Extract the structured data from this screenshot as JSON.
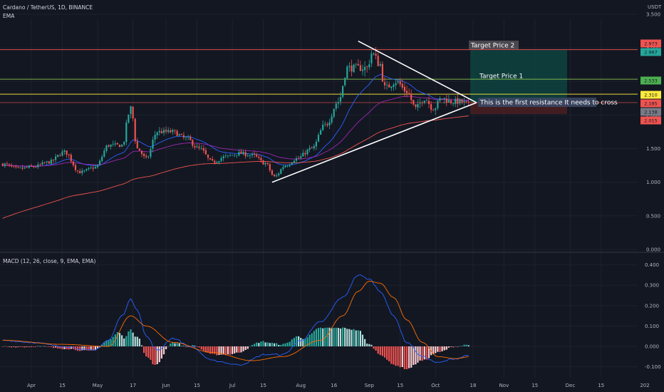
{
  "header": {
    "symbol": "Cardano / TetherUS, 1D, BINANCE",
    "ema_label": "EMA",
    "currency": "USDT",
    "macd_label": "MACD (12, 26, close, 9, EMA, EMA)"
  },
  "colors": {
    "background": "#131722",
    "up": "#26a69a",
    "down": "#ef5350",
    "ema_fast": "#2962ff",
    "ema_mid": "#9c27b0",
    "ema_slow": "#ef5350",
    "macd_line": "#2962ff",
    "signal_line": "#ff6d00",
    "target_zone": "#0d4a44",
    "stop_zone": "#4a1e22"
  },
  "annotations": {
    "target_price_2": "Target Price 2",
    "target_price_1": "Target Price 1",
    "resistance_note": "This is the first resistance It needs to cross"
  },
  "chart_data": [
    {
      "type": "candlestick",
      "title": "Cardano / TetherUS, 1D, BINANCE",
      "x_ticks": [
        "Apr",
        "15",
        "May",
        "17",
        "Jun",
        "15",
        "Jul",
        "15",
        "Aug",
        "16",
        "Sep",
        "15",
        "Oct",
        "18",
        "Nov",
        "15",
        "Dec",
        "15",
        "202"
      ],
      "y_ticks": [
        "3.500",
        "3.000",
        "2.500",
        "2.000",
        "1.500",
        "1.000",
        "0.500",
        "0.000"
      ],
      "ylim": [
        0,
        3.5
      ],
      "price_tags": [
        {
          "value": "2.973",
          "color": "#ef5350"
        },
        {
          "value": "2.967",
          "color": "#26a69a"
        },
        {
          "value": "2.533",
          "color": "#4caf50"
        },
        {
          "value": "2.310",
          "color": "#ffeb3b"
        },
        {
          "value": "2.185",
          "color": "#ef5350"
        },
        {
          "value": "2.138",
          "color": "#787b86"
        },
        {
          "value": "2.015",
          "color": "#ef5350"
        }
      ],
      "horizontal_lines": [
        2.973,
        2.533,
        2.31,
        2.185
      ],
      "trendlines": [
        {
          "name": "upper",
          "points": [
            [
              "Aug 27",
              3.1
            ],
            [
              "Oct 17",
              2.185
            ]
          ]
        },
        {
          "name": "lower",
          "points": [
            [
              "Jul 19",
              1.0
            ],
            [
              "Oct 17",
              2.185
            ]
          ]
        }
      ],
      "trade_zone": {
        "entry": 2.185,
        "target": 2.967,
        "stop": 2.015
      },
      "series_points": [
        [
          "Mar 19",
          1.27
        ],
        [
          "Mar 26",
          1.2
        ],
        [
          "Apr 2",
          1.23
        ],
        [
          "Apr 9",
          1.3
        ],
        [
          "Apr 16",
          1.45
        ],
        [
          "Apr 23",
          1.15
        ],
        [
          "Apr 30",
          1.22
        ],
        [
          "May 6",
          1.55
        ],
        [
          "May 12",
          1.55
        ],
        [
          "May 16",
          2.1
        ],
        [
          "May 19",
          1.5
        ],
        [
          "May 23",
          1.35
        ],
        [
          "May 28",
          1.75
        ],
        [
          "Jun 4",
          1.75
        ],
        [
          "Jun 10",
          1.65
        ],
        [
          "Jun 16",
          1.5
        ],
        [
          "Jun 22",
          1.3
        ],
        [
          "Jun 28",
          1.38
        ],
        [
          "Jul 4",
          1.43
        ],
        [
          "Jul 10",
          1.4
        ],
        [
          "Jul 16",
          1.28
        ],
        [
          "Jul 20",
          1.08
        ],
        [
          "Jul 25",
          1.25
        ],
        [
          "Jul 30",
          1.35
        ],
        [
          "Aug 6",
          1.5
        ],
        [
          "Aug 12",
          1.85
        ],
        [
          "Aug 18",
          2.2
        ],
        [
          "Aug 22",
          2.7
        ],
        [
          "Aug 26",
          2.7
        ],
        [
          "Aug 31",
          2.7
        ],
        [
          "Sep 2",
          2.92
        ],
        [
          "Sep 6",
          2.75
        ],
        [
          "Sep 8",
          2.4
        ],
        [
          "Sep 13",
          2.5
        ],
        [
          "Sep 18",
          2.35
        ],
        [
          "Sep 22",
          2.1
        ],
        [
          "Sep 26",
          2.25
        ],
        [
          "Sep 30",
          2.1
        ],
        [
          "Oct 4",
          2.25
        ],
        [
          "Oct 8",
          2.2
        ],
        [
          "Oct 12",
          2.2
        ],
        [
          "Oct 16",
          2.16
        ]
      ]
    },
    {
      "type": "line",
      "title": "MACD (12, 26, close, 9, EMA, EMA)",
      "y_ticks": [
        "0.400",
        "0.300",
        "0.200",
        "0.100",
        "0.000",
        "-0.100"
      ],
      "ylim": [
        -0.13,
        0.4
      ],
      "macd": [
        [
          "Mar 19",
          0.03
        ],
        [
          "Apr 1",
          0.02
        ],
        [
          "Apr 15",
          0.0
        ],
        [
          "Apr 29",
          -0.02
        ],
        [
          "May 6",
          0.03
        ],
        [
          "May 12",
          0.15
        ],
        [
          "May 16",
          0.23
        ],
        [
          "May 19",
          0.18
        ],
        [
          "May 23",
          0.05
        ],
        [
          "May 28",
          -0.02
        ],
        [
          "Jun 4",
          0.04
        ],
        [
          "Jun 12",
          0.0
        ],
        [
          "Jun 22",
          -0.07
        ],
        [
          "Jul 4",
          -0.09
        ],
        [
          "Jul 16",
          -0.04
        ],
        [
          "Jul 24",
          -0.04
        ],
        [
          "Aug 1",
          0.03
        ],
        [
          "Aug 10",
          0.12
        ],
        [
          "Aug 20",
          0.24
        ],
        [
          "Aug 27",
          0.35
        ],
        [
          "Sep 1",
          0.33
        ],
        [
          "Sep 6",
          0.27
        ],
        [
          "Sep 12",
          0.15
        ],
        [
          "Sep 18",
          0.02
        ],
        [
          "Sep 25",
          -0.05
        ],
        [
          "Oct 2",
          -0.08
        ],
        [
          "Oct 10",
          -0.06
        ],
        [
          "Oct 17",
          -0.04
        ]
      ],
      "signal": [
        [
          "Mar 19",
          0.03
        ],
        [
          "Apr 15",
          0.01
        ],
        [
          "May 6",
          0.0
        ],
        [
          "May 16",
          0.15
        ],
        [
          "May 23",
          0.1
        ],
        [
          "Jun 4",
          0.02
        ],
        [
          "Jun 22",
          -0.03
        ],
        [
          "Jul 10",
          -0.07
        ],
        [
          "Jul 24",
          -0.05
        ],
        [
          "Aug 10",
          0.03
        ],
        [
          "Aug 20",
          0.15
        ],
        [
          "Aug 27",
          0.27
        ],
        [
          "Sep 1",
          0.32
        ],
        [
          "Sep 6",
          0.31
        ],
        [
          "Sep 12",
          0.24
        ],
        [
          "Sep 18",
          0.13
        ],
        [
          "Sep 25",
          0.02
        ],
        [
          "Oct 2",
          -0.05
        ],
        [
          "Oct 10",
          -0.06
        ],
        [
          "Oct 17",
          -0.05
        ]
      ]
    }
  ]
}
